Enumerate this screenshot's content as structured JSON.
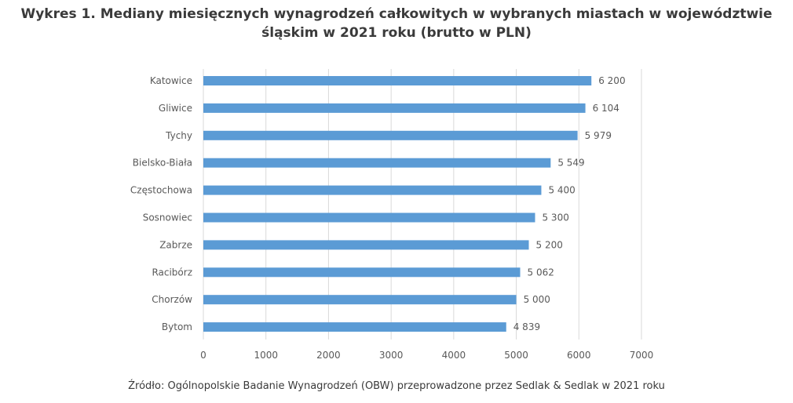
{
  "title": "Wykres 1. Mediany miesięcznych wynagrodzeń całkowitych w wybranych miastach w województwie śląskim w 2021 roku (brutto w PLN)",
  "source": "Źródło: Ogólnopolskie Badanie Wynagrodzeń (OBW) przeprowadzone przez Sedlak & Sedlak w 2021 roku",
  "chart_data": {
    "type": "bar",
    "orientation": "horizontal",
    "title": "Wykres 1. Mediany miesięcznych wynagrodzeń całkowitych w wybranych miastach w województwie śląskim w 2021 roku (brutto w PLN)",
    "categories": [
      "Katowice",
      "Gliwice",
      "Tychy",
      "Bielsko-Biała",
      "Częstochowa",
      "Sosnowiec",
      "Zabrze",
      "Racibórz",
      "Chorzów",
      "Bytom"
    ],
    "values": [
      6200,
      6104,
      5979,
      5549,
      5400,
      5300,
      5200,
      5062,
      5000,
      4839
    ],
    "data_labels": [
      "6 200",
      "6 104",
      "5 979",
      "5 549",
      "5 400",
      "5 300",
      "5 200",
      "5 062",
      "5 000",
      "4 839"
    ],
    "xlim": [
      0,
      7000
    ],
    "xticks": [
      0,
      1000,
      2000,
      3000,
      4000,
      5000,
      6000,
      7000
    ],
    "xtick_labels": [
      "0",
      "1000",
      "2000",
      "3000",
      "4000",
      "5000",
      "6000",
      "7000"
    ],
    "xlabel": "",
    "ylabel": "",
    "grid": "vertical",
    "legend": "none",
    "bar_color": "#5b9bd5",
    "grid_color": "#d9d9d9"
  }
}
